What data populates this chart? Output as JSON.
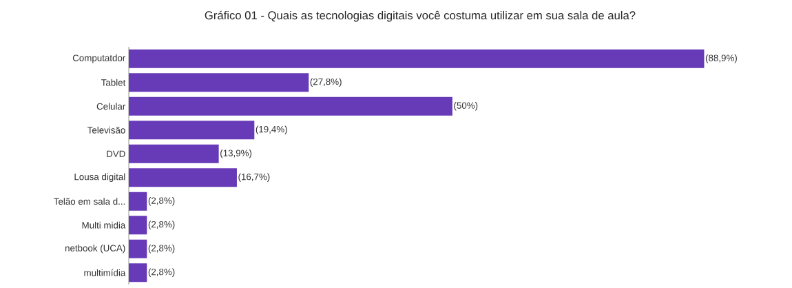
{
  "chart_data": {
    "type": "bar",
    "orientation": "horizontal",
    "title": "Gráfico 01 - Quais as tecnologias digitais você costuma utilizar em sua sala de aula?",
    "categories": [
      "Computatdor",
      "Tablet",
      "Celular",
      "Televisão",
      "DVD",
      "Lousa digital",
      "Telão em sala d...",
      "Multi midia",
      "netbook (UCA)",
      "multimídia"
    ],
    "values": [
      88.9,
      27.8,
      50,
      19.4,
      13.9,
      16.7,
      2.8,
      2.8,
      2.8,
      2.8
    ],
    "value_labels": [
      "(88,9%)",
      "(27,8%)",
      "(50%)",
      "(19,4%)",
      "(13,9%)",
      "(16,7%)",
      "(2,8%)",
      "(2,8%)",
      "(2,8%)",
      "(2,8%)"
    ],
    "color": "#673ab7"
  }
}
